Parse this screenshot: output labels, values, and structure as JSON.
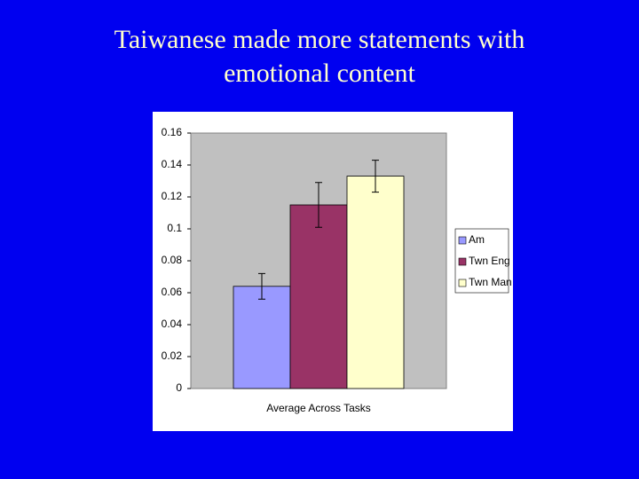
{
  "chart_data": {
    "type": "bar",
    "title": "Taiwanese made more statements with emotional content",
    "categories": [
      "Average Across Tasks"
    ],
    "series": [
      {
        "name": "Am",
        "color": "#9999ff",
        "values": [
          0.064
        ],
        "errors": [
          0.008
        ]
      },
      {
        "name": "Twn Eng",
        "color": "#993366",
        "values": [
          0.115
        ],
        "errors": [
          0.014
        ]
      },
      {
        "name": "Twn Man",
        "color": "#ffffcc",
        "values": [
          0.133
        ],
        "errors": [
          0.01
        ]
      }
    ],
    "ylim": [
      0,
      0.16
    ],
    "yticks": [
      0,
      0.02,
      0.04,
      0.06,
      0.08,
      0.1,
      0.12,
      0.14,
      0.16
    ],
    "grid": false,
    "legend": "right"
  }
}
